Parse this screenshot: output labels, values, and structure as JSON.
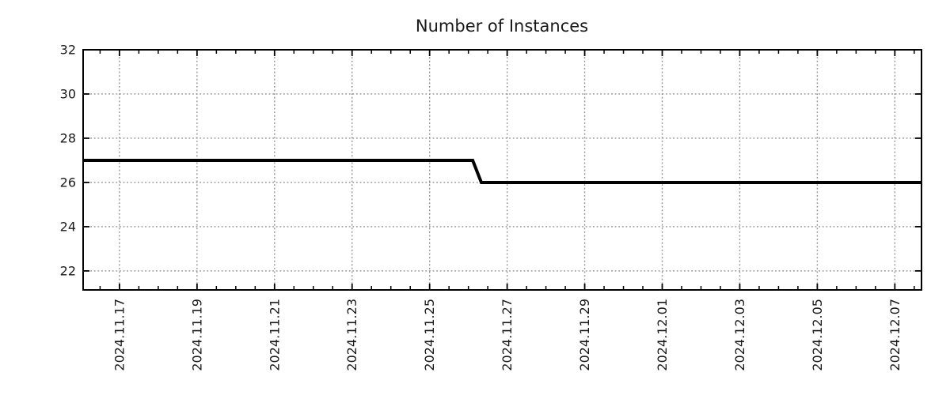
{
  "chart_data": {
    "type": "line",
    "title": "Number of Instances",
    "legend": "none",
    "grid": "dotted",
    "series": [
      {
        "name": "instances",
        "color": "#000000",
        "points": [
          {
            "date": "2024.11.16 01:30",
            "value": 27
          },
          {
            "date": "2024.11.26 02:40",
            "value": 27
          },
          {
            "date": "2024.11.26 08:00",
            "value": 26
          },
          {
            "date": "2024.12.07 16:30",
            "value": 26
          }
        ]
      }
    ],
    "x_axis": {
      "range": [
        "2024.11.16 01:30",
        "2024.12.07 16:30"
      ],
      "tick_labels": [
        "2024.11.17",
        "2024.11.19",
        "2024.11.21",
        "2024.11.23",
        "2024.11.25",
        "2024.11.27",
        "2024.11.29",
        "2024.12.01",
        "2024.12.03",
        "2024.12.05",
        "2024.12.07"
      ],
      "major_tick_interval_days": 2,
      "minor_tick_interval_days": 0.5
    },
    "y_axis": {
      "range": [
        21.14,
        32
      ],
      "ticks": [
        22,
        24,
        26,
        28,
        30,
        32
      ]
    },
    "colors": {
      "line": "#000000",
      "axis": "#000000",
      "grid": "#8f8f8f",
      "text": "#1a1a1a"
    }
  }
}
